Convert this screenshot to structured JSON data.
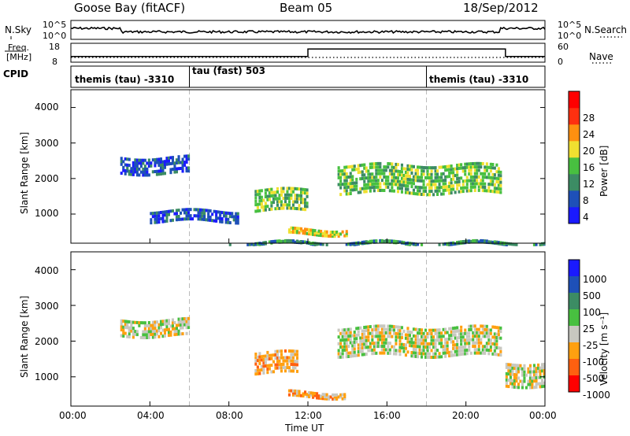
{
  "header": {
    "station": "Goose Bay (fitACF)",
    "beam": "Beam 05",
    "date": "18/Sep/2012"
  },
  "nsky": {
    "label": "N.Sky",
    "right_label": "N.Search",
    "ticks_left": [
      "10^5",
      "10^0"
    ],
    "ticks_right": [
      "10^5",
      "10^0"
    ]
  },
  "freq": {
    "label_line1": "Freq.",
    "label_line2": "[MHz]",
    "ticks_left": [
      "18",
      "8"
    ],
    "right_label": "Nave",
    "ticks_right": [
      "60",
      "0"
    ],
    "steps": [
      {
        "from_hour": 0,
        "to_hour": 12,
        "value": 11
      },
      {
        "from_hour": 12,
        "to_hour": 22,
        "value": 15
      },
      {
        "from_hour": 22,
        "to_hour": 24,
        "value": 11
      }
    ]
  },
  "cpid": {
    "label": "CPID",
    "segments": [
      {
        "text": "themis (tau) -3310",
        "start_hour": 0
      },
      {
        "text": "tau (fast) 503",
        "start_hour": 6
      },
      {
        "text": "themis (tau) -3310",
        "start_hour": 18
      }
    ]
  },
  "chart_data": [
    {
      "type": "heatmap",
      "name": "power",
      "ylabel": "Slant Range [km]",
      "ylim": [
        180,
        4500
      ],
      "xlim": [
        0,
        24
      ],
      "y_ticks": [
        "1000",
        "2000",
        "3000",
        "4000"
      ],
      "colorbar": {
        "label": "Power [dB]",
        "ticks": [
          "4",
          "8",
          "12",
          "16",
          "20",
          "24",
          "28"
        ],
        "range": [
          0,
          30
        ]
      },
      "colors": [
        "#1a1aff",
        "#1e50b8",
        "#3c8c64",
        "#48c040",
        "#f0e030",
        "#ff9010",
        "#ff3010",
        "#ff0000"
      ],
      "bands": [
        {
          "t0": 2.5,
          "t1": 6,
          "r0": 2200,
          "r1": 2700,
          "level": 1
        },
        {
          "t0": 9.3,
          "t1": 12,
          "r0": 1150,
          "r1": 1800,
          "level": 3
        },
        {
          "t0": 13.5,
          "t1": 21.8,
          "r0": 1650,
          "r1": 2500,
          "level": 3
        },
        {
          "t0": 4,
          "t1": 8.5,
          "r0": 850,
          "r1": 1200,
          "level": 1
        },
        {
          "t0": 11,
          "t1": 14,
          "r0": 480,
          "r1": 650,
          "level": 4
        },
        {
          "t0": 8,
          "t1": 24,
          "r0": 200,
          "r1": 250,
          "level": 2
        }
      ]
    },
    {
      "type": "heatmap",
      "name": "velocity",
      "ylabel": "Slant Range [km]",
      "ylim": [
        180,
        4500
      ],
      "xlim": [
        0,
        24
      ],
      "y_ticks": [
        "1000",
        "2000",
        "3000",
        "4000"
      ],
      "colorbar": {
        "label": "Velocity [m s⁻¹]",
        "ticks": [
          "1000",
          "500",
          "100",
          "25",
          "-25",
          "-100",
          "-500",
          "-1000"
        ],
        "range": [
          -1000,
          1000
        ]
      },
      "colors": [
        "#1a1aff",
        "#1e50b8",
        "#3c8c64",
        "#48c040",
        "#c8c8c0",
        "#ffa010",
        "#ff6010",
        "#ff0000"
      ],
      "bands": [
        {
          "t0": 2.5,
          "t1": 6,
          "r0": 2200,
          "r1": 2700,
          "level": 4
        },
        {
          "t0": 9.3,
          "t1": 11.5,
          "r0": 1150,
          "r1": 1800,
          "level": 5
        },
        {
          "t0": 13.5,
          "t1": 21.8,
          "r0": 1650,
          "r1": 2500,
          "level": 4
        },
        {
          "t0": 11,
          "t1": 14,
          "r0": 480,
          "r1": 650,
          "level": 5
        },
        {
          "t0": 22,
          "t1": 24,
          "r0": 800,
          "r1": 1500,
          "level": 4
        }
      ]
    }
  ],
  "xaxis": {
    "label": "Time UT",
    "ticks": [
      "00:00",
      "04:00",
      "08:00",
      "12:00",
      "16:00",
      "20:00",
      "00:00"
    ]
  }
}
